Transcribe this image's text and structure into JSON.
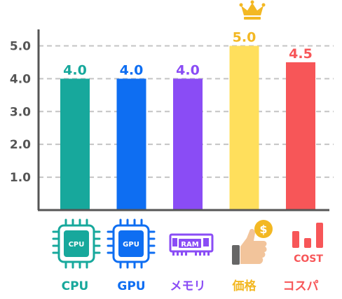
{
  "chart_data": {
    "type": "bar",
    "categories": [
      "CPU",
      "GPU",
      "メモリ",
      "価格",
      "コスパ"
    ],
    "values": [
      4.0,
      4.0,
      4.0,
      5.0,
      4.5
    ],
    "value_labels": [
      "4.0",
      "4.0",
      "4.0",
      "5.0",
      "4.5"
    ],
    "colors": [
      "#17a89c",
      "#0e6ef2",
      "#8a4cf5",
      "#ffdf5c",
      "#f75658"
    ],
    "label_colors": [
      "#17a89c",
      "#0e6ef2",
      "#8a4cf5",
      "#f3b823",
      "#f75658"
    ],
    "ytick_labels": [
      "1.0",
      "2.0",
      "3.0",
      "4.0",
      "5.0"
    ],
    "ytick_values": [
      1,
      2,
      3,
      4,
      5
    ],
    "ylim": [
      0,
      5.5
    ],
    "grid": true,
    "legend": "none",
    "title": "",
    "xlabel": "",
    "ylabel": ""
  },
  "icons": [
    {
      "name": "cpu-chip-icon",
      "text": "CPU"
    },
    {
      "name": "gpu-chip-icon",
      "text": "GPU"
    },
    {
      "name": "ram-module-icon",
      "text": "RAM"
    },
    {
      "name": "thumbs-up-coin-icon",
      "text": "$"
    },
    {
      "name": "cost-bars-icon",
      "text": "COST"
    }
  ],
  "crown_icon": "crown-icon"
}
